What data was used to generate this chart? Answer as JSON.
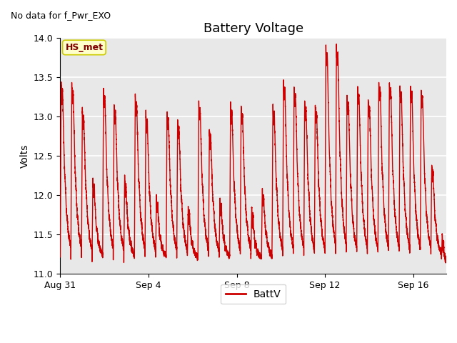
{
  "title": "Battery Voltage",
  "note": "No data for f_Pwr_EXO",
  "ylabel": "Volts",
  "legend_label": "BattV",
  "ylim": [
    11.0,
    14.0
  ],
  "yticks": [
    11.0,
    11.5,
    12.0,
    12.5,
    13.0,
    13.5,
    14.0
  ],
  "xtick_labels": [
    "Aug 31",
    "Sep 4",
    "Sep 8",
    "Sep 12",
    "Sep 16"
  ],
  "xtick_positions": [
    0,
    4,
    8,
    12,
    16
  ],
  "xlim": [
    0,
    17.5
  ],
  "line_color": "#cc0000",
  "bg_plot_color": "#e8e8e8",
  "bg_outer_color": "#ffffff",
  "hs_met_box_color": "#ffffcc",
  "hs_met_text_color": "#800000",
  "hs_met_edge_color": "#cccc00",
  "grid_color": "#ffffff",
  "title_fontsize": 13,
  "label_fontsize": 10,
  "tick_fontsize": 9,
  "note_fontsize": 9,
  "legend_fontsize": 10,
  "linewidth": 1.0
}
